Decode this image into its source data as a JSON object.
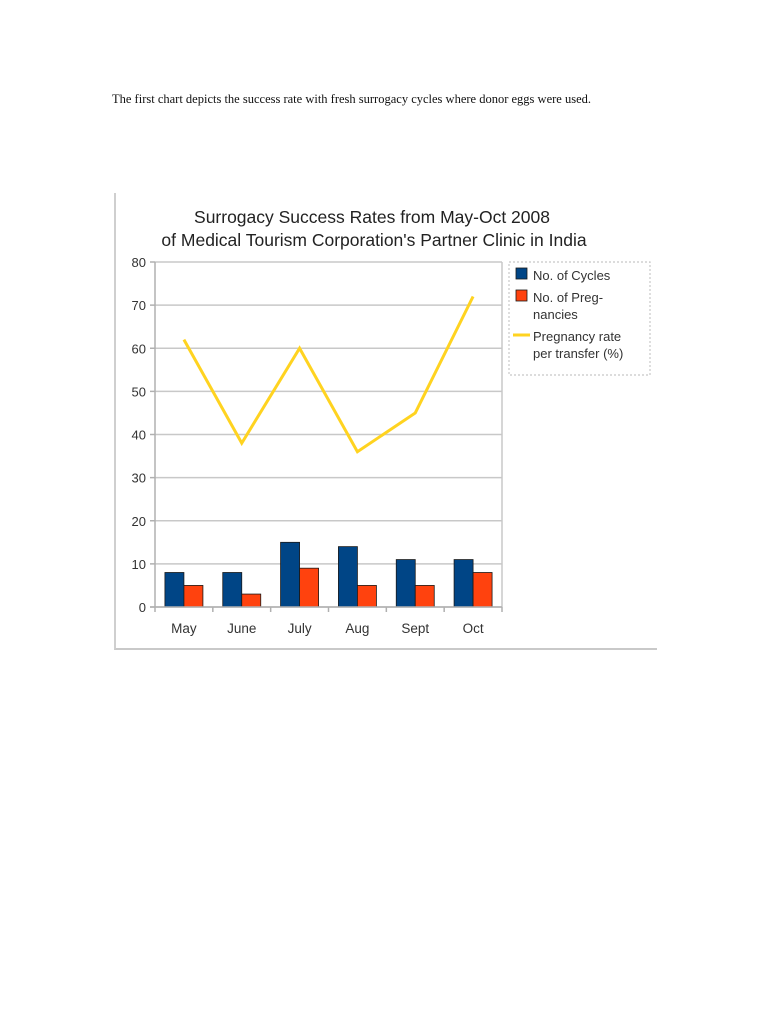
{
  "document": {
    "intro_text": "The first chart depicts the success rate with fresh surrogacy cycles where donor eggs were used."
  },
  "chart_data": {
    "type": "bar",
    "title": "Surrogacy Success Rates from May-Oct 2008 of Medical Tourism Corporation's Partner Clinic in India",
    "title_lines": [
      "Surrogacy Success Rates from May-Oct 2008",
      "of Medical Tourism Corporation's Partner Clinic in India"
    ],
    "xlabel": "",
    "ylabel": "",
    "categories": [
      "May",
      "June",
      "July",
      "Aug",
      "Sept",
      "Oct"
    ],
    "series": [
      {
        "name": "No. of Cycles",
        "type": "bar",
        "color": "#004586",
        "values": [
          8,
          8,
          15,
          14,
          11,
          11
        ]
      },
      {
        "name": "No. of Pregnancies",
        "type": "bar",
        "color": "#ff420e",
        "values": [
          5,
          3,
          9,
          5,
          5,
          8
        ]
      },
      {
        "name": "Pregnancy rate per transfer (%)",
        "type": "line",
        "color": "#ffd320",
        "values": [
          62,
          38,
          60,
          36,
          45,
          72
        ]
      }
    ],
    "legend": {
      "position": "right",
      "entries": [
        {
          "lines": [
            "No. of Cycles"
          ],
          "color": "#004586",
          "kind": "box"
        },
        {
          "lines": [
            "No. of Preg-",
            "nancies"
          ],
          "color": "#ff420e",
          "kind": "box"
        },
        {
          "lines": [
            "Pregnancy rate",
            "per transfer (%)"
          ],
          "color": "#ffd320",
          "kind": "line"
        }
      ]
    },
    "yticks": [
      0,
      10,
      20,
      30,
      40,
      50,
      60,
      70,
      80
    ],
    "ylim": [
      0,
      80
    ],
    "grid": true
  }
}
